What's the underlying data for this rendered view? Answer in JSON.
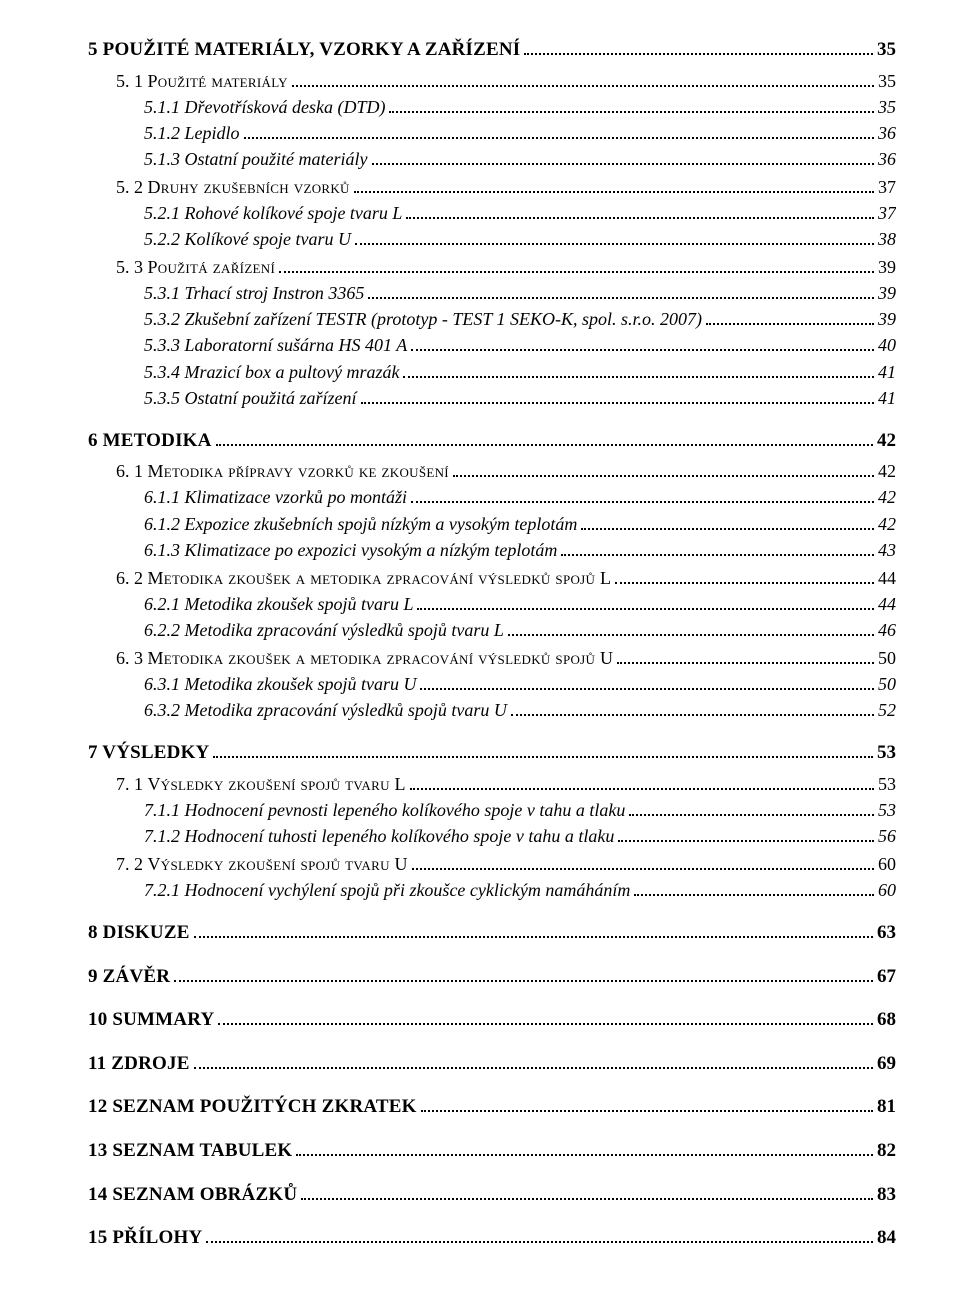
{
  "toc": [
    {
      "level": 1,
      "text": "5    POUŽITÉ MATERIÁLY, VZORKY A ZAŘÍZENÍ",
      "page": "35"
    },
    {
      "level": 2,
      "num": "5. 1",
      "title": "Použité materiály",
      "page": "35"
    },
    {
      "level": 3,
      "text": "5.1.1    Dřevotřísková deska (DTD)",
      "page": "35"
    },
    {
      "level": 3,
      "text": "5.1.2    Lepidlo",
      "page": "36"
    },
    {
      "level": 3,
      "text": "5.1.3    Ostatní použité materiály",
      "page": "36"
    },
    {
      "level": 2,
      "num": "5. 2",
      "title": "Druhy zkušebních vzorků",
      "page": "37"
    },
    {
      "level": 3,
      "text": "5.2.1    Rohové kolíkové spoje tvaru L",
      "page": "37"
    },
    {
      "level": 3,
      "text": "5.2.2    Kolíkové spoje tvaru U",
      "page": "38"
    },
    {
      "level": 2,
      "num": "5. 3",
      "title": "Použitá zařízení",
      "page": "39"
    },
    {
      "level": 3,
      "text": "5.3.1    Trhací stroj Instron 3365",
      "page": "39"
    },
    {
      "level": 3,
      "text": "5.3.2    Zkušební zařízení TESTR (prototyp - TEST 1 SEKO-K, spol. s.r.o. 2007)",
      "page": "39"
    },
    {
      "level": 3,
      "text": "5.3.3    Laboratorní sušárna HS 401 A",
      "page": "40"
    },
    {
      "level": 3,
      "text": "5.3.4    Mrazicí box a pultový mrazák",
      "page": "41"
    },
    {
      "level": 3,
      "text": "5.3.5    Ostatní použitá zařízení",
      "page": "41"
    },
    {
      "level": 1,
      "text": "6    METODIKA",
      "page": "42"
    },
    {
      "level": 2,
      "num": "6. 1",
      "title": "Metodika přípravy vzorků ke zkoušení",
      "page": "42"
    },
    {
      "level": 3,
      "text": "6.1.1    Klimatizace vzorků po montáži",
      "page": "42"
    },
    {
      "level": 3,
      "text": "6.1.2    Expozice zkušebních spojů nízkým a vysokým teplotám",
      "page": "42"
    },
    {
      "level": 3,
      "text": "6.1.3    Klimatizace po expozici vysokým a nízkým teplotám",
      "page": "43"
    },
    {
      "level": 2,
      "num": "6. 2",
      "title": "Metodika zkoušek a metodika zpracování výsledků spojů L",
      "page": "44"
    },
    {
      "level": 3,
      "text": "6.2.1    Metodika zkoušek spojů tvaru L",
      "page": "44"
    },
    {
      "level": 3,
      "text": "6.2.2    Metodika zpracování výsledků spojů tvaru L",
      "page": "46"
    },
    {
      "level": 2,
      "num": "6. 3",
      "title": "Metodika zkoušek a metodika zpracování výsledků spojů U",
      "page": "50"
    },
    {
      "level": 3,
      "text": "6.3.1    Metodika zkoušek spojů tvaru U",
      "page": "50"
    },
    {
      "level": 3,
      "text": "6.3.2    Metodika zpracování výsledků spojů tvaru U",
      "page": "52"
    },
    {
      "level": 1,
      "text": "7    VÝSLEDKY",
      "page": "53"
    },
    {
      "level": 2,
      "num": "7. 1",
      "title": "Výsledky zkoušení spojů  tvaru L",
      "page": "53"
    },
    {
      "level": 3,
      "text": "7.1.1    Hodnocení pevnosti lepeného kolíkového spoje v tahu a tlaku",
      "page": "53"
    },
    {
      "level": 3,
      "text": "7.1.2    Hodnocení tuhosti lepeného kolíkového spoje v tahu a tlaku",
      "page": "56"
    },
    {
      "level": 2,
      "num": "7. 2",
      "title": "Výsledky zkoušení spojů  tvaru U",
      "page": "60"
    },
    {
      "level": 3,
      "text": "7.2.1    Hodnocení vychýlení spojů při zkoušce cyklickým namáháním",
      "page": "60"
    },
    {
      "level": 1,
      "text": "8    DISKUZE",
      "page": "63"
    },
    {
      "level": 1,
      "text": "9    ZÁVĚR",
      "page": "67"
    },
    {
      "level": 1,
      "text": "10   SUMMARY",
      "page": "68"
    },
    {
      "level": 1,
      "text": "11   ZDROJE",
      "page": "69"
    },
    {
      "level": 1,
      "text": "12   SEZNAM POUŽITÝCH ZKRATEK",
      "page": "81"
    },
    {
      "level": 1,
      "text": "13   SEZNAM TABULEK",
      "page": "82"
    },
    {
      "level": 1,
      "text": "14   SEZNAM OBRÁZKŮ",
      "page": "83"
    },
    {
      "level": 1,
      "text": "15   PŘÍLOHY",
      "page": "84"
    }
  ]
}
